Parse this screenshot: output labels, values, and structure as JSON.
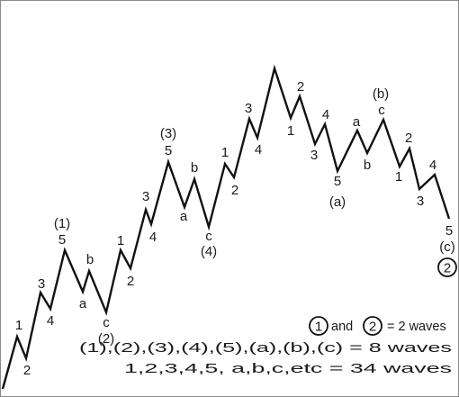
{
  "wave_labels": {
    "w1": "1",
    "w2": "2",
    "w3": "3",
    "w4": "4",
    "w5": "5",
    "wa": "a",
    "wb": "b",
    "wc": "c",
    "d1": "(1)",
    "d2": "(2)",
    "d3": "(3)",
    "d4": "(4)",
    "da": "(a)",
    "db": "(b)",
    "dc": "(c)",
    "circled_2": "2"
  },
  "legend": {
    "circled_1": "1",
    "circled_2": "2",
    "line1_and": "and",
    "line1_suffix": "= 2 waves",
    "line2": "(1),(2),(3),(4),(5),(a),(b),(c) = 8 waves",
    "line3": "1,2,3,4,5, a,b,c,etc = 34 waves"
  },
  "colors": {
    "line": "#111111",
    "border": "#8a8a8a"
  }
}
